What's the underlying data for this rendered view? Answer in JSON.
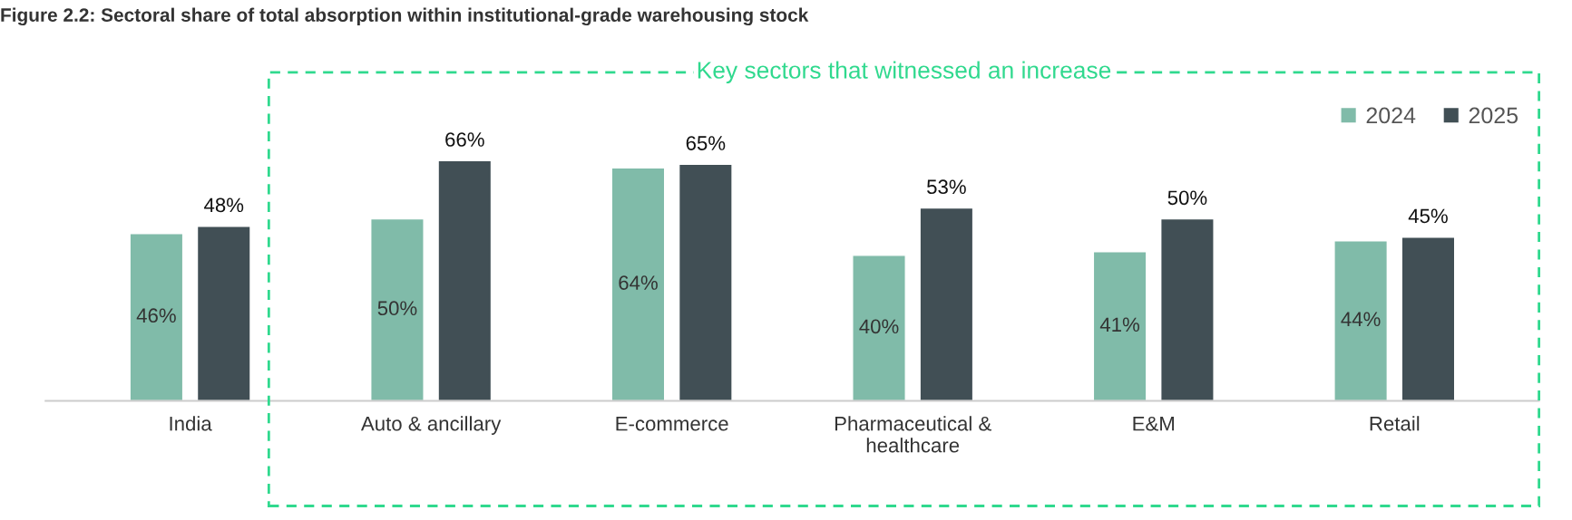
{
  "chart_data": {
    "type": "bar",
    "title": "Figure 2.2: Sectoral share of total absorption within institutional-grade warehousing stock",
    "categories": [
      "India",
      "Auto & ancillary",
      "E-commerce",
      "Pharmaceutical &\nhealthcare",
      "E&M",
      "Retail"
    ],
    "series": [
      {
        "name": "2024",
        "color": "#80bba9",
        "values": [
          46,
          50,
          64,
          40,
          41,
          44
        ],
        "value_labels": [
          "46%",
          "50%",
          "64%",
          "40%",
          "41%",
          "44%"
        ]
      },
      {
        "name": "2025",
        "color": "#414f55",
        "values": [
          48,
          66,
          65,
          53,
          50,
          45
        ],
        "value_labels": [
          "48%",
          "66%",
          "65%",
          "53%",
          "50%",
          "45%"
        ]
      }
    ],
    "annotations": [
      "Key sectors that witnessed an increase"
    ],
    "ylim": [
      0,
      80
    ],
    "tick_labels": "x",
    "legend": "top right",
    "grid": false
  }
}
